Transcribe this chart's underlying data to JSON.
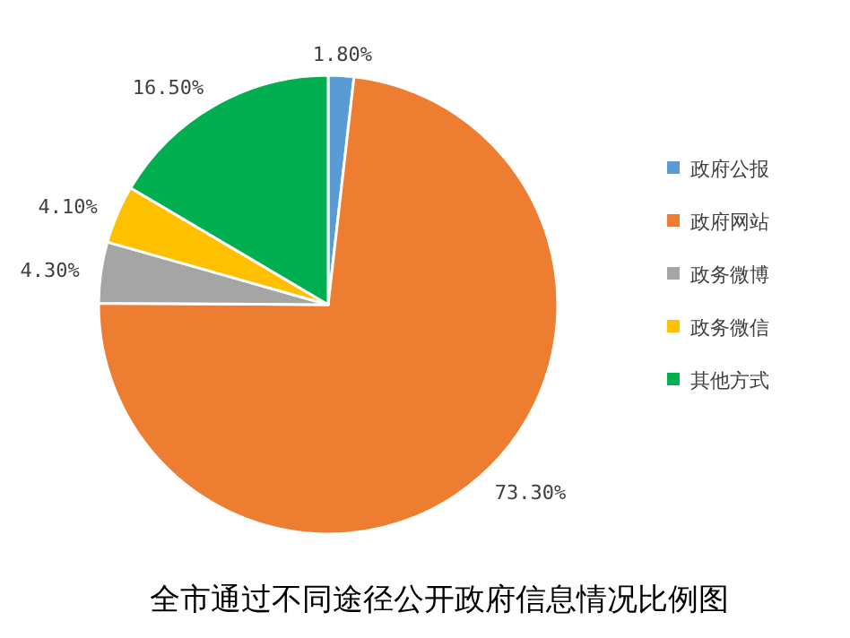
{
  "chart_data": {
    "type": "pie",
    "title": "全市通过不同途径公开政府信息情况比例图",
    "categories": [
      "政府公报",
      "政府网站",
      "政务微博",
      "政务微信",
      "其他方式"
    ],
    "values": [
      1.8,
      73.3,
      4.3,
      4.1,
      16.5
    ],
    "colors": [
      "#5b9bd5",
      "#ed7d31",
      "#a5a5a5",
      "#ffc000",
      "#00b050"
    ],
    "value_labels": [
      "1.80%",
      "73.30%",
      "4.30%",
      "4.10%",
      "16.50%"
    ],
    "legend": "right"
  }
}
